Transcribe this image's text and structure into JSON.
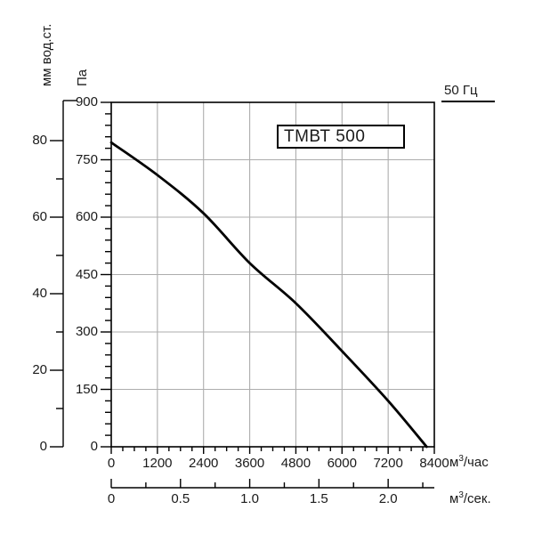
{
  "chart_data": {
    "type": "line",
    "title": "ТМВТ 500",
    "annotation": "50 Гц",
    "grid": true,
    "legend": "none",
    "background": "#ffffff",
    "colors": {
      "curve": "#000000",
      "grid": "#adadad",
      "axis": "#000000",
      "text": "#1a1a1a"
    },
    "y_axis_pa": {
      "label": "Па",
      "range": [
        0,
        900
      ],
      "major_ticks": [
        0,
        150,
        300,
        450,
        600,
        750,
        900
      ],
      "minor_step": 30
    },
    "y_axis_mm": {
      "label": "мм вод.ст.",
      "major_ticks": [
        0,
        20,
        40,
        60,
        80
      ],
      "minor_step": 10,
      "pa_per_unit": 10
    },
    "x_axis_m3h": {
      "unit_base": "м",
      "unit_sup": "3",
      "unit_rest": "/час",
      "range": [
        0,
        8400
      ],
      "major_ticks": [
        0,
        1200,
        2400,
        3600,
        4800,
        6000,
        7200,
        8400
      ],
      "minor_step": 300
    },
    "x_axis_m3s": {
      "unit_base": "м",
      "unit_sup": "3",
      "unit_rest": "/сек.",
      "range": [
        0,
        2.3333
      ],
      "tick_labels": [
        "0",
        "0.5",
        "1.0",
        "1.5",
        "2.0"
      ],
      "tick_values": [
        0,
        0.5,
        1.0,
        1.5,
        2.0
      ],
      "minor_step": 0.25
    },
    "series": [
      {
        "name": "ТМВТ 500 — 50 Гц",
        "x": [
          0,
          1200,
          2400,
          3600,
          4800,
          6000,
          7200,
          8200
        ],
        "y": [
          795,
          710,
          610,
          480,
          375,
          250,
          120,
          0
        ]
      }
    ]
  }
}
